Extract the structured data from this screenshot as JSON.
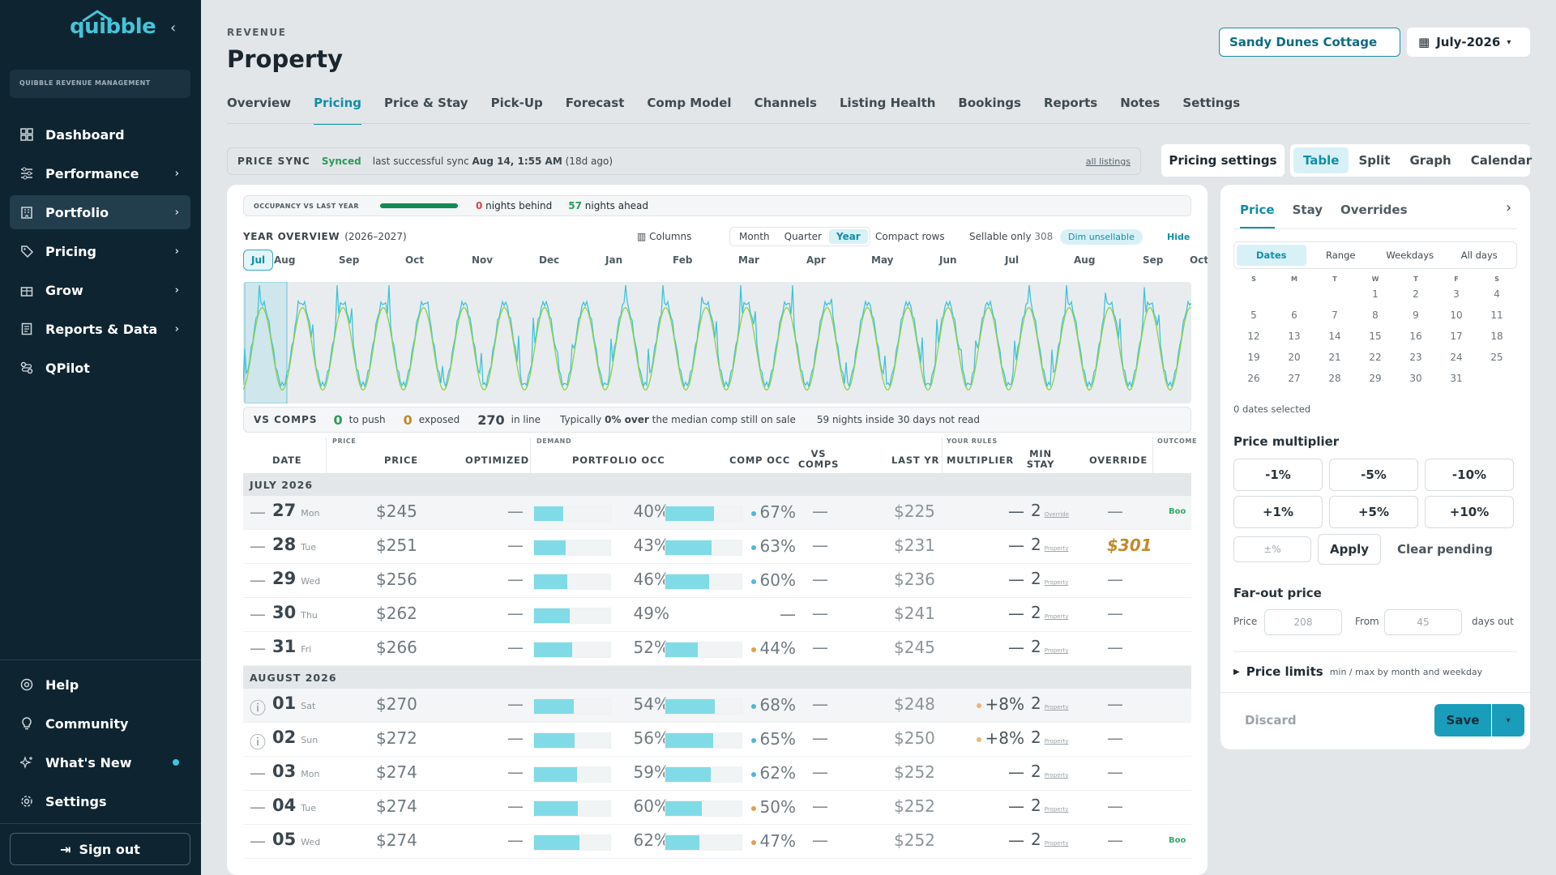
{
  "brand": {
    "name": "quibble",
    "org": "QUIBBLE REVENUE MANAGEMENT"
  },
  "sidebar": {
    "items": [
      {
        "label": "Dashboard"
      },
      {
        "label": "Performance"
      },
      {
        "label": "Portfolio"
      },
      {
        "label": "Pricing"
      },
      {
        "label": "Grow"
      },
      {
        "label": "Reports & Data"
      },
      {
        "label": "QPilot"
      }
    ],
    "bottom": [
      {
        "label": "Help"
      },
      {
        "label": "Community"
      },
      {
        "label": "What's New"
      },
      {
        "label": "Settings"
      }
    ],
    "signout": "Sign out"
  },
  "header": {
    "crumb": "REVENUE",
    "title": "Property",
    "property": "Sandy Dunes Cottage",
    "month": "July-2026"
  },
  "tabs": [
    "Overview",
    "Pricing",
    "Price & Stay",
    "Pick-Up",
    "Forecast",
    "Comp Model",
    "Channels",
    "Listing Health",
    "Bookings",
    "Reports",
    "Notes",
    "Settings"
  ],
  "sync": {
    "label": "PRICE SYNC",
    "status": "Synced",
    "text": "last successful sync",
    "when": "Aug 14, 1:55 AM",
    "ago": "(18d ago)",
    "link": "all listings"
  },
  "pricing_settings": "Pricing settings",
  "views": [
    "Table",
    "Split",
    "Graph",
    "Calendar"
  ],
  "occ": {
    "label": "OCCUPANCY VS LAST YEAR",
    "behind_n": "0",
    "behind": "nights behind",
    "ahead_n": "57",
    "ahead": "nights ahead"
  },
  "overview": {
    "title": "YEAR OVERVIEW",
    "years": "(2026–2027)",
    "columns": "Columns",
    "seg": [
      "Month",
      "Quarter",
      "Year"
    ],
    "compact": "Compact rows",
    "sellable": "Sellable only",
    "sellable_n": "308",
    "dim": "Dim unsellable",
    "hide": "Hide"
  },
  "months": [
    "Jul",
    "Aug",
    "Sep",
    "Oct",
    "Nov",
    "Dec",
    "Jan",
    "Feb",
    "Mar",
    "Apr",
    "May",
    "Jun",
    "Jul",
    "Aug",
    "Sep",
    "Oct"
  ],
  "vscomps": {
    "label": "VS COMPS",
    "push_n": "0",
    "push": "to push",
    "exposed_n": "0",
    "exposed": "exposed",
    "inline_n": "270",
    "inline": "in line",
    "typ1": "Typically",
    "typ2": "0% over",
    "typ3": "the median comp still on sale",
    "nights": "59 nights inside 30 days not read"
  },
  "table": {
    "groups": {
      "price": "PRICE",
      "demand": "DEMAND",
      "rules": "YOUR RULES",
      "outcome": "OUTCOME"
    },
    "headers": {
      "date": "DATE",
      "price": "PRICE",
      "optimized": "OPTIMIZED",
      "pocc": "PORTFOLIO OCC",
      "cocc": "COMP OCC",
      "vs": "VS COMPS",
      "ly": "LAST YR",
      "mult": "MULTIPLIER",
      "min": "MIN STAY",
      "ovr": "OVERRIDE"
    },
    "month1": "JULY 2026",
    "month2": "AUGUST 2026",
    "rows1": [
      {
        "day": "27",
        "dow": "Mon",
        "price": "$245",
        "opt": "—",
        "pocc": "40%",
        "pocc_v": 0.4,
        "cocc": "67%",
        "cocc_v": 0.67,
        "cdot": "#4fb8d6",
        "vs": "—",
        "ly": "$225",
        "mult": "—",
        "min": "2",
        "src": "Override",
        "ovr": "—",
        "out": "Boo",
        "icon": "—"
      },
      {
        "day": "28",
        "dow": "Tue",
        "price": "$251",
        "opt": "—",
        "pocc": "43%",
        "pocc_v": 0.43,
        "cocc": "63%",
        "cocc_v": 0.63,
        "cdot": "#4fb8d6",
        "vs": "—",
        "ly": "$231",
        "mult": "—",
        "min": "2",
        "src": "Property",
        "ovr": "$301",
        "out": "",
        "icon": "—"
      },
      {
        "day": "29",
        "dow": "Wed",
        "price": "$256",
        "opt": "—",
        "pocc": "46%",
        "pocc_v": 0.46,
        "cocc": "60%",
        "cocc_v": 0.6,
        "cdot": "#4fb8d6",
        "vs": "—",
        "ly": "$236",
        "mult": "—",
        "min": "2",
        "src": "Property",
        "ovr": "—",
        "out": "",
        "icon": "—"
      },
      {
        "day": "30",
        "dow": "Thu",
        "price": "$262",
        "opt": "—",
        "pocc": "49%",
        "pocc_v": 0.49,
        "cocc": "—",
        "cocc_v": 0,
        "cdot": "",
        "vs": "—",
        "ly": "$241",
        "mult": "—",
        "min": "2",
        "src": "Property",
        "ovr": "—",
        "out": "",
        "icon": "—"
      },
      {
        "day": "31",
        "dow": "Fri",
        "price": "$266",
        "opt": "—",
        "pocc": "52%",
        "pocc_v": 0.52,
        "cocc": "44%",
        "cocc_v": 0.44,
        "cdot": "#e0a04a",
        "vs": "—",
        "ly": "$245",
        "mult": "—",
        "min": "2",
        "src": "Property",
        "ovr": "—",
        "out": "",
        "icon": "—"
      }
    ],
    "rows2": [
      {
        "day": "01",
        "dow": "Sat",
        "price": "$270",
        "opt": "—",
        "pocc": "54%",
        "pocc_v": 0.54,
        "cocc": "68%",
        "cocc_v": 0.68,
        "cdot": "#4fb8d6",
        "vs": "—",
        "ly": "$248",
        "mult": "+8%",
        "min": "2",
        "src": "Property",
        "ovr": "—",
        "out": "",
        "icon": "ⓘ"
      },
      {
        "day": "02",
        "dow": "Sun",
        "price": "$272",
        "opt": "—",
        "pocc": "56%",
        "pocc_v": 0.56,
        "cocc": "65%",
        "cocc_v": 0.65,
        "cdot": "#4fb8d6",
        "vs": "—",
        "ly": "$250",
        "mult": "+8%",
        "min": "2",
        "src": "Property",
        "ovr": "—",
        "out": "",
        "icon": "ⓘ"
      },
      {
        "day": "03",
        "dow": "Mon",
        "price": "$274",
        "opt": "—",
        "pocc": "59%",
        "pocc_v": 0.59,
        "cocc": "62%",
        "cocc_v": 0.62,
        "cdot": "#4fb8d6",
        "vs": "—",
        "ly": "$252",
        "mult": "—",
        "min": "2",
        "src": "Property",
        "ovr": "—",
        "out": "",
        "icon": "—"
      },
      {
        "day": "04",
        "dow": "Tue",
        "price": "$274",
        "opt": "—",
        "pocc": "60%",
        "pocc_v": 0.6,
        "cocc": "50%",
        "cocc_v": 0.5,
        "cdot": "#e0a04a",
        "vs": "—",
        "ly": "$252",
        "mult": "—",
        "min": "2",
        "src": "Property",
        "ovr": "—",
        "out": "",
        "icon": "—"
      },
      {
        "day": "05",
        "dow": "Wed",
        "price": "$274",
        "opt": "—",
        "pocc": "62%",
        "pocc_v": 0.62,
        "cocc": "47%",
        "cocc_v": 0.47,
        "cdot": "#e0a04a",
        "vs": "—",
        "ly": "$252",
        "mult": "—",
        "min": "2",
        "src": "Property",
        "ovr": "—",
        "out": "Boo",
        "icon": "—"
      }
    ]
  },
  "panel": {
    "tabs": [
      "Price",
      "Stay",
      "Overrides"
    ],
    "seg": [
      "Dates",
      "Range",
      "Weekdays",
      "All days"
    ],
    "dow": [
      "S",
      "M",
      "T",
      "W",
      "T",
      "F",
      "S"
    ],
    "days": [
      "1",
      "2",
      "3",
      "4",
      "5",
      "6",
      "7",
      "8",
      "9",
      "10",
      "11",
      "12",
      "13",
      "14",
      "15",
      "16",
      "17",
      "18",
      "19",
      "20",
      "21",
      "22",
      "23",
      "24",
      "25",
      "26",
      "27",
      "28",
      "29",
      "30",
      "31"
    ],
    "selected": "0 dates selected",
    "mult_title": "Price multiplier",
    "mults": [
      "-1%",
      "-5%",
      "-10%",
      "+1%",
      "+5%",
      "+10%"
    ],
    "pct_ph": "±%",
    "apply": "Apply",
    "clear": "Clear pending",
    "far_title": "Far-out price",
    "price_lbl": "Price",
    "price_val": "208",
    "from_lbl": "From",
    "from_val": "45",
    "days_out": "days out",
    "limits": "Price limits",
    "limits_sub": "min / max by month and weekday",
    "discard": "Discard",
    "save": "Save"
  }
}
